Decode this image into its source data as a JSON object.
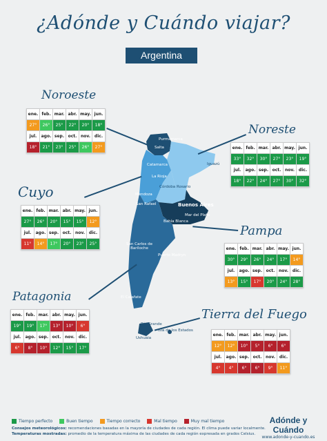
{
  "header": {
    "title": "¿Adónde y Cuándo viajar?",
    "country": "Argentina"
  },
  "months": [
    "ene.",
    "feb.",
    "mar.",
    "abr.",
    "may.",
    "jun.",
    "jul.",
    "ago.",
    "sep.",
    "oct.",
    "nov.",
    "dic."
  ],
  "regions": {
    "noroeste": {
      "name": "Noroeste",
      "temps": [
        "27°",
        "26°",
        "25°",
        "22°",
        "20°",
        "18°",
        "18°",
        "21°",
        "23°",
        "25°",
        "26°",
        "27°"
      ],
      "ratings": [
        "ok",
        "good",
        "perfect",
        "perfect",
        "perfect",
        "perfect",
        "vbad",
        "perfect",
        "perfect",
        "perfect",
        "good",
        "ok"
      ]
    },
    "noreste": {
      "name": "Noreste",
      "temps": [
        "33°",
        "32°",
        "30°",
        "27°",
        "23°",
        "19°",
        "18°",
        "22°",
        "24°",
        "27°",
        "30°",
        "32°"
      ],
      "ratings": [
        "perfect",
        "perfect",
        "perfect",
        "perfect",
        "perfect",
        "perfect",
        "perfect",
        "perfect",
        "perfect",
        "perfect",
        "perfect",
        "perfect"
      ]
    },
    "cuyo": {
      "name": "Cuyo",
      "temps": [
        "27°",
        "26°",
        "20°",
        "15°",
        "15°",
        "12°",
        "11°",
        "14°",
        "17°",
        "20°",
        "23°",
        "25°"
      ],
      "ratings": [
        "perfect",
        "perfect",
        "perfect",
        "perfect",
        "perfect",
        "ok",
        "bad",
        "ok",
        "good",
        "perfect",
        "perfect",
        "perfect"
      ]
    },
    "pampa": {
      "name": "Pampa",
      "temps": [
        "30°",
        "29°",
        "26°",
        "24°",
        "17°",
        "14°",
        "13°",
        "15°",
        "17°",
        "20°",
        "24°",
        "28°"
      ],
      "ratings": [
        "perfect",
        "perfect",
        "perfect",
        "perfect",
        "perfect",
        "ok",
        "ok",
        "perfect",
        "bad",
        "perfect",
        "perfect",
        "perfect"
      ]
    },
    "patagonia": {
      "name": "Patagonia",
      "temps": [
        "19°",
        "19°",
        "17°",
        "13°",
        "10°",
        "6°",
        "6°",
        "8°",
        "10°",
        "12°",
        "15°",
        "17°"
      ],
      "ratings": [
        "perfect",
        "perfect",
        "good",
        "vbad",
        "vbad",
        "bad",
        "bad",
        "vbad",
        "vbad",
        "perfect",
        "perfect",
        "perfect"
      ]
    },
    "tierra_del_fuego": {
      "name": "Tierra del Fuego",
      "temps": [
        "12°",
        "12°",
        "10°",
        "5°",
        "6°",
        "6°",
        "4°",
        "4°",
        "6°",
        "6°",
        "9°",
        "11°"
      ],
      "ratings": [
        "ok",
        "ok",
        "vbad",
        "vbad",
        "vbad",
        "vbad",
        "bad",
        "bad",
        "vbad",
        "vbad",
        "bad",
        "ok"
      ]
    }
  },
  "cities": [
    "Purmamarca",
    "Salta",
    "Iguazú",
    "Catamarca",
    "La Rioja",
    "Córdoba",
    "Rosario",
    "Mendoza",
    "San Rafael",
    "Buenos Aires",
    "Mar del Plata",
    "Bahía Blanca",
    "San Carlos de Bariloche",
    "Puerto Madryn",
    "El Calafate",
    "Río Grande",
    "Isla de los Estados",
    "Ushuaia"
  ],
  "legend": [
    {
      "label": "Tiempo perfecto",
      "color": "#1b9a48"
    },
    {
      "label": "Buen tiempo",
      "color": "#3ec85f"
    },
    {
      "label": "Tiempo correcto",
      "color": "#f39a1e"
    },
    {
      "label": "Mal tiempo",
      "color": "#d7372e"
    },
    {
      "label": "Muy mal tiempo",
      "color": "#b5212c"
    }
  ],
  "notes": {
    "label1": "Consejos meteorológicos:",
    "text1": "recomendaciones basadas en la mayoría de ciudades de cada región. El clima puede variar localmente.",
    "label2": "Temperaturas mostradas:",
    "text2": "promedio de la temperatura máxima de las ciudades de cada región expresada en grados Celsius."
  },
  "brand": {
    "name": "Adónde y Cuándo",
    "url": "www.adonde-y-cuando.es"
  }
}
